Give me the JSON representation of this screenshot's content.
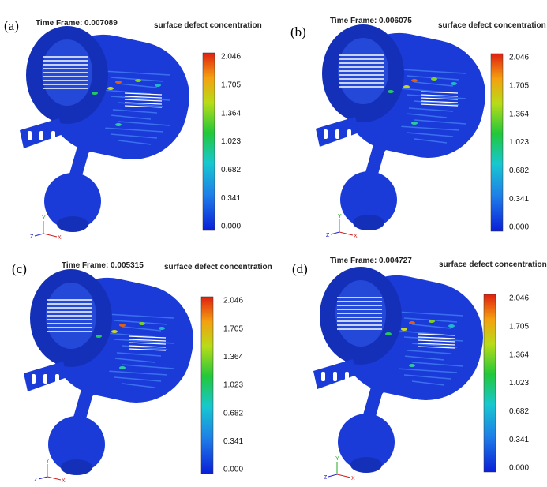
{
  "panels": [
    {
      "label": "(a)",
      "time_frame": "Time Frame: 0.007089",
      "legend_title": "surface defect concentration",
      "ticks": [
        "2.046",
        "1.705",
        "1.364",
        "1.023",
        "0.682",
        "0.341",
        "0.000"
      ],
      "axes": [
        "Y",
        "Z",
        "X"
      ]
    },
    {
      "label": "(b)",
      "time_frame": "Time Frame: 0.006075",
      "legend_title": "surface defect concentration",
      "ticks": [
        "2.046",
        "1.705",
        "1.364",
        "1.023",
        "0.682",
        "0.341",
        "0.000"
      ],
      "axes": [
        "Y",
        "Z",
        "X"
      ]
    },
    {
      "label": "(c)",
      "time_frame": "Time Frame: 0.005315",
      "legend_title": "surface defect concentration",
      "ticks": [
        "2.046",
        "1.705",
        "1.364",
        "1.023",
        "0.682",
        "0.341",
        "0.000"
      ],
      "axes": [
        "Y",
        "Z",
        "X"
      ]
    },
    {
      "label": "(d)",
      "time_frame": "Time Frame: 0.004727",
      "legend_title": "surface defect concentration",
      "ticks": [
        "2.046",
        "1.705",
        "1.364",
        "1.023",
        "0.682",
        "0.341",
        "0.000"
      ],
      "axes": [
        "Y",
        "Z",
        "X"
      ]
    }
  ]
}
